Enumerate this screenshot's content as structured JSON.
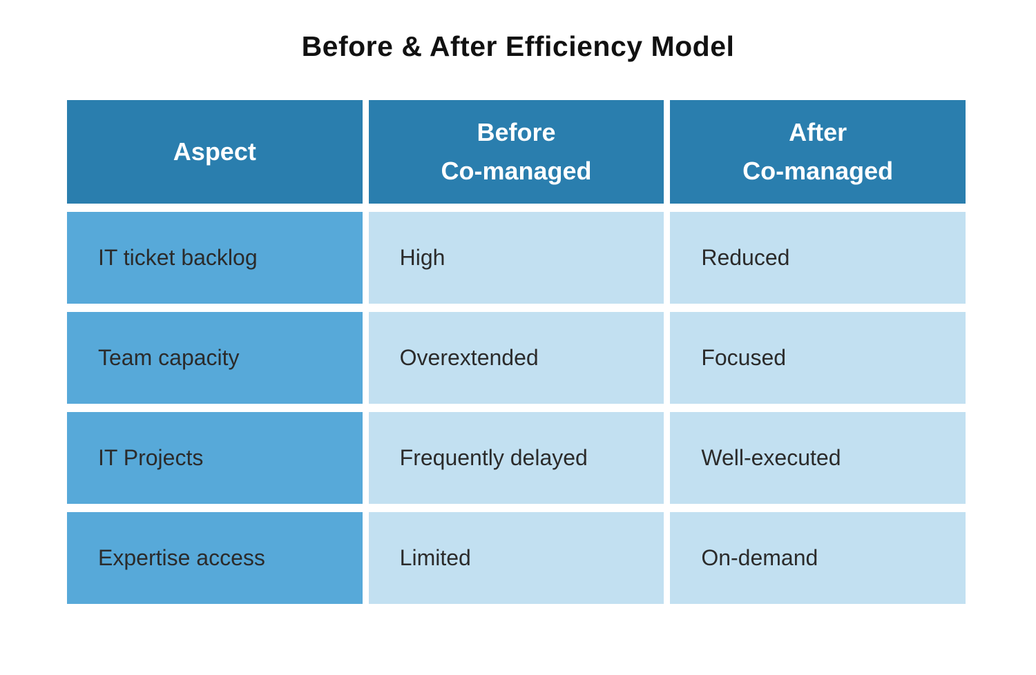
{
  "title": "Before & After Efficiency Model",
  "colors": {
    "header_bg": "#2A7EAE",
    "aspect_column_bg": "#57A9D9",
    "value_cell_bg": "#C2E0F1",
    "header_text": "#FFFFFF",
    "body_text": "#2B2B2B",
    "title_text": "#111111"
  },
  "table": {
    "header": {
      "aspect": "Aspect",
      "before_line1": "Before",
      "before_line2": "Co-managed",
      "after_line1": "After",
      "after_line2": "Co-managed"
    },
    "rows": [
      {
        "aspect": "IT ticket backlog",
        "before": "High",
        "after": "Reduced"
      },
      {
        "aspect": "Team capacity",
        "before": "Overextended",
        "after": "Focused"
      },
      {
        "aspect": "IT Projects",
        "before": "Frequently delayed",
        "after": "Well-executed"
      },
      {
        "aspect": "Expertise access",
        "before": "Limited",
        "after": "On-demand"
      }
    ]
  },
  "chart_data": {
    "type": "table",
    "title": "Before & After Efficiency Model",
    "columns": [
      "Aspect",
      "Before Co-managed",
      "After Co-managed"
    ],
    "rows": [
      [
        "IT ticket backlog",
        "High",
        "Reduced"
      ],
      [
        "Team capacity",
        "Overextended",
        "Focused"
      ],
      [
        "IT Projects",
        "Frequently delayed",
        "Well-executed"
      ],
      [
        "Expertise access",
        "Limited",
        "On-demand"
      ]
    ],
    "layout_hints": {
      "header_fill": "#2A7EAE",
      "first_column_fill": "#57A9D9",
      "body_fill": "#C2E0F1",
      "grid": "off",
      "cell_gaps": true
    }
  }
}
